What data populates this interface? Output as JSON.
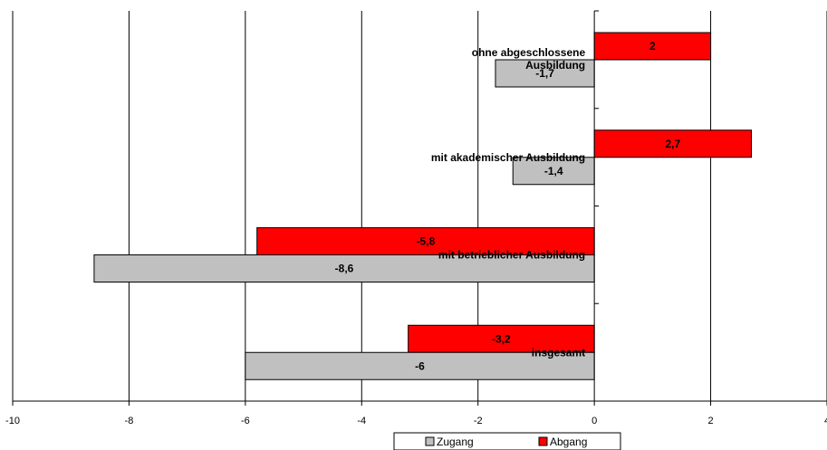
{
  "chart_data": {
    "type": "bar",
    "orientation": "horizontal",
    "categories": [
      "insgesamt",
      "mit betrieblicher Ausbildung",
      "mit akademischer Ausbildung",
      "ohne abgeschlossene Ausbildung"
    ],
    "category_label_lines": [
      [
        "insgesamt"
      ],
      [
        "mit betrieblicher Ausbildung"
      ],
      [
        "mit akademischer Ausbildung"
      ],
      [
        "ohne abgeschlossene",
        "Ausbildung"
      ]
    ],
    "series": [
      {
        "name": "Abgang",
        "color": "#ff0000",
        "values": [
          -3.2,
          -5.8,
          2.7,
          2
        ],
        "labels": [
          "-3,2",
          "-5,8",
          "2,7",
          "2"
        ]
      },
      {
        "name": "Zugang",
        "color": "#c0c0c0",
        "values": [
          -6,
          -8.6,
          -1.4,
          -1.7
        ],
        "labels": [
          "-6",
          "-8,6",
          "-1,4",
          "-1,7"
        ]
      }
    ],
    "xlim": [
      -10,
      4
    ],
    "x_ticks": [
      -10,
      -8,
      -6,
      -4,
      -2,
      0,
      2,
      4
    ],
    "x_tick_labels": [
      "-10",
      "-8",
      "-6",
      "-4",
      "-2",
      "0",
      "2",
      "4"
    ],
    "grid": true,
    "legend": {
      "placement": "bottom",
      "entries": [
        "Zugang",
        "Abgang"
      ]
    },
    "title": "",
    "xlabel": "",
    "ylabel": ""
  }
}
